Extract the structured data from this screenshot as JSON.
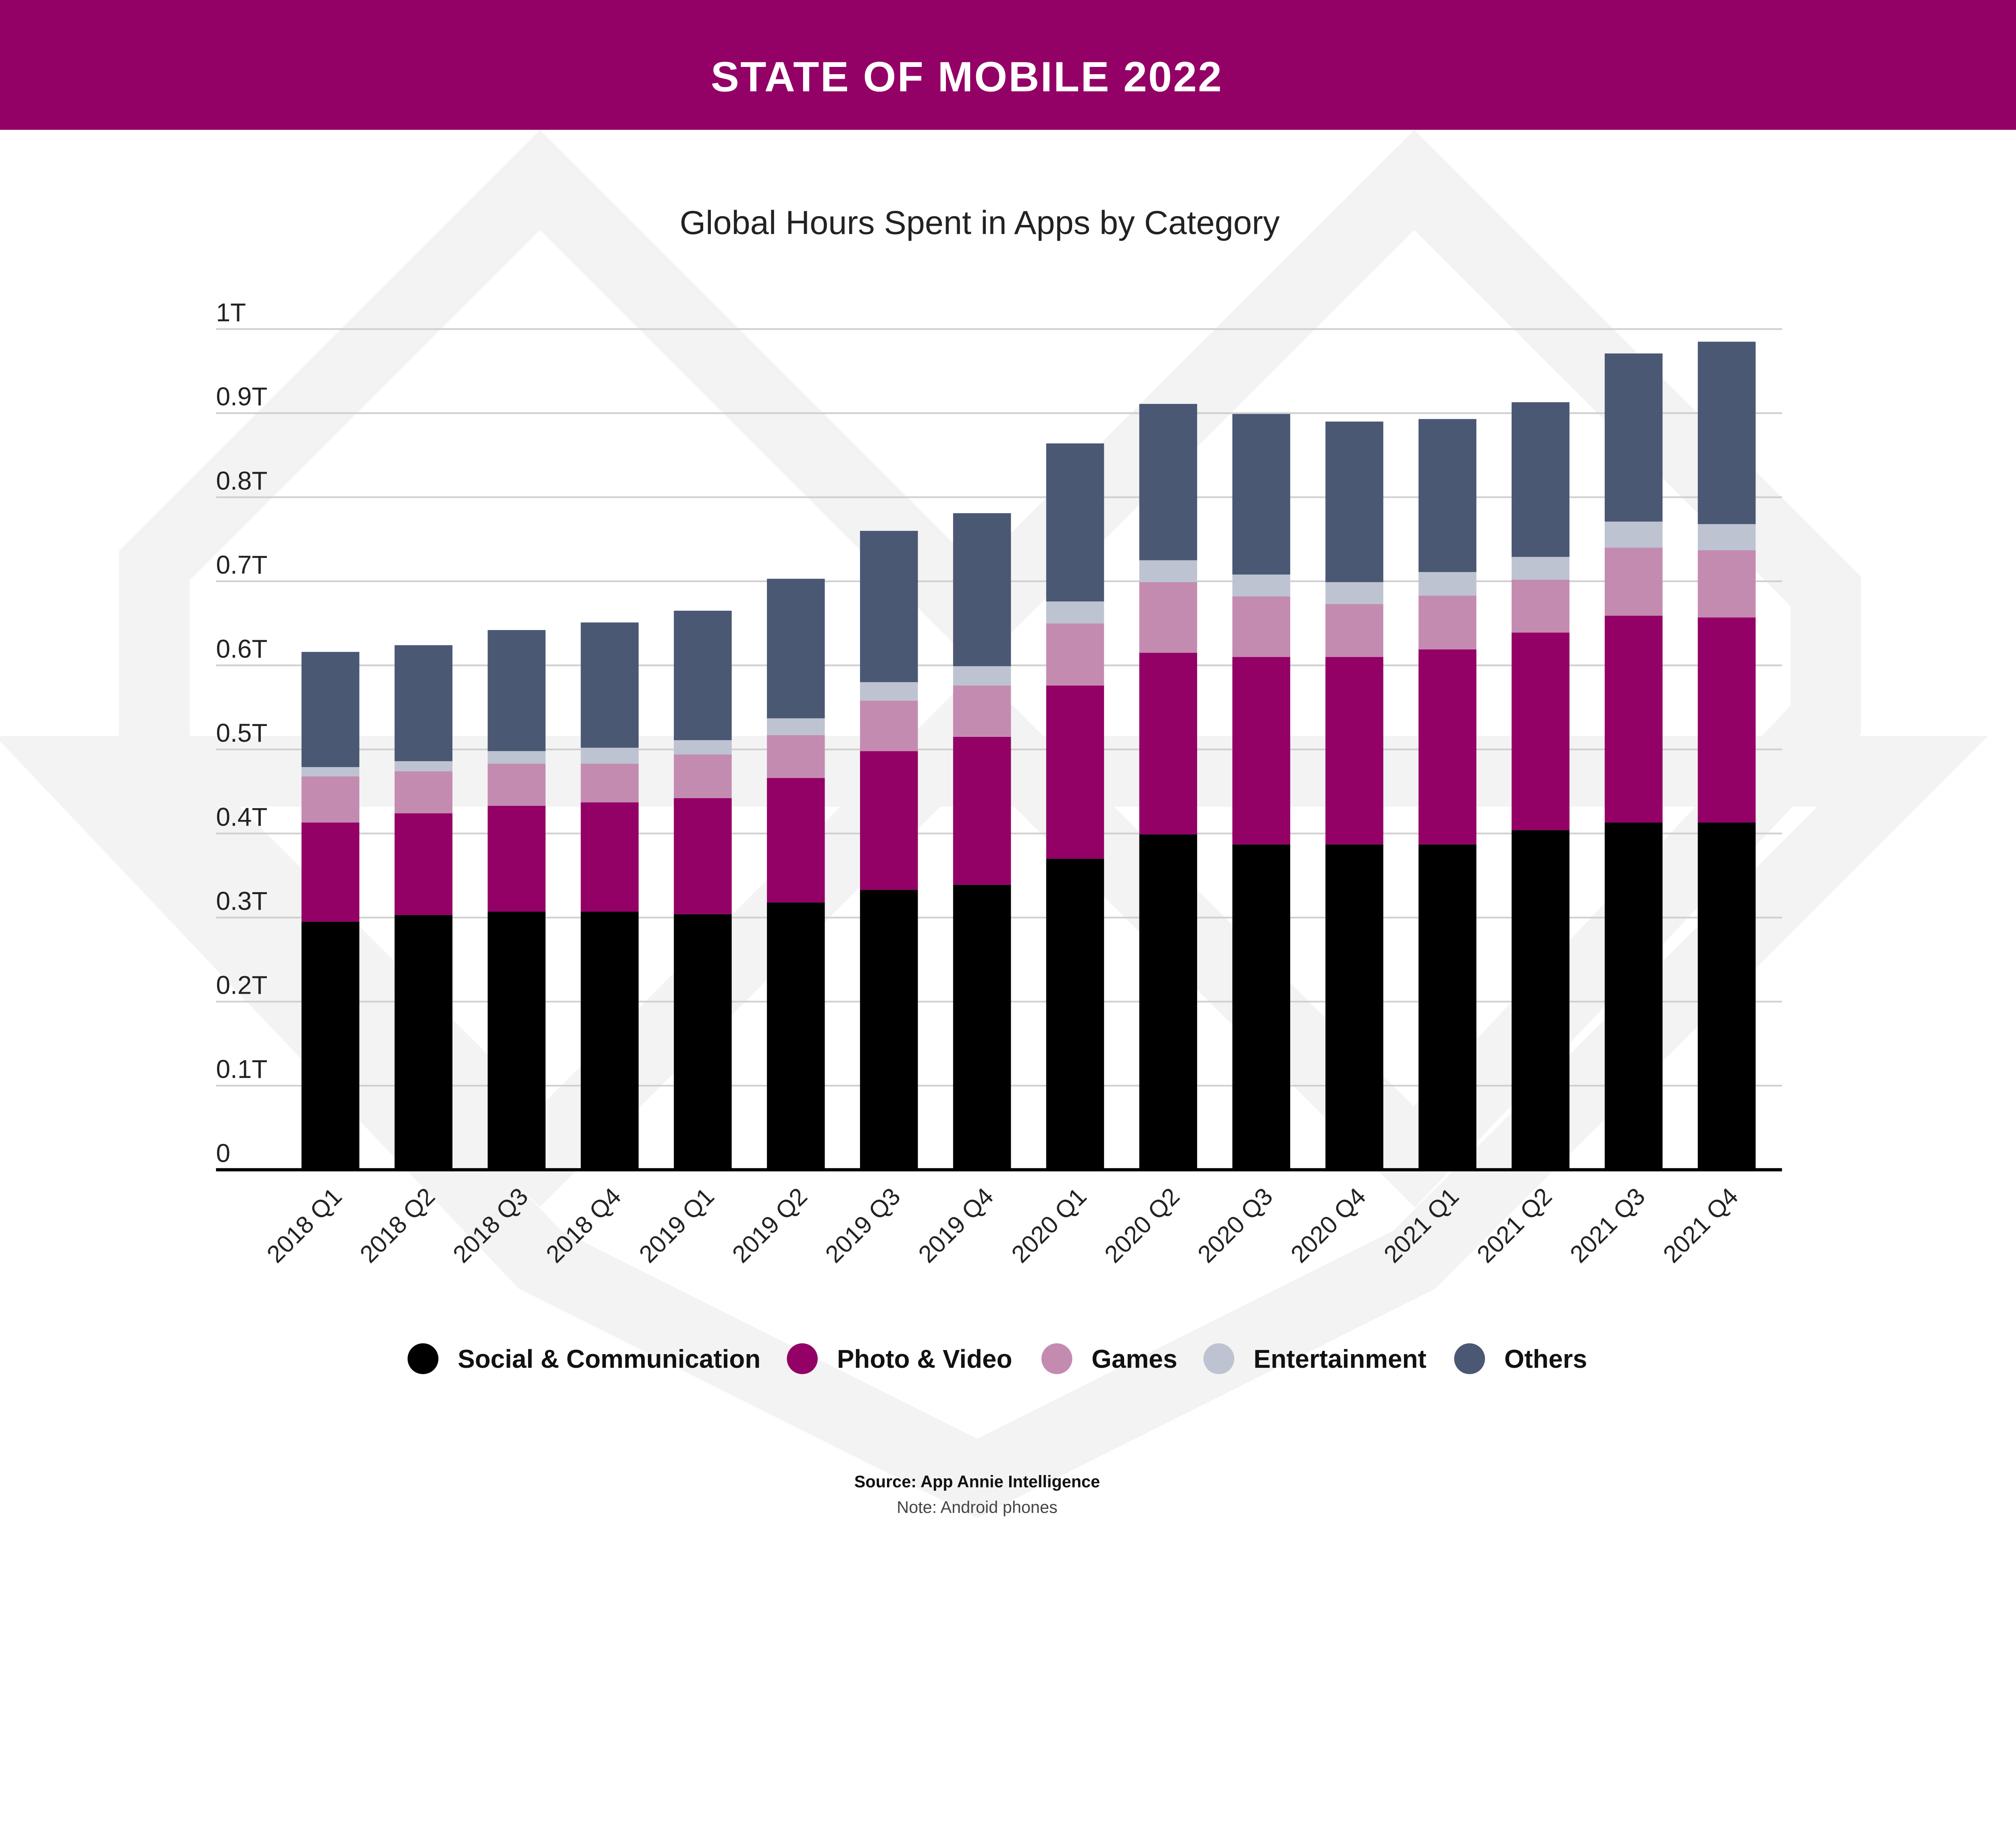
{
  "header": {
    "title": "STATE OF MOBILE 2022",
    "color": "#930066"
  },
  "footer": {
    "source": "Source: App Annie Intelligence",
    "note": "Note: Android phones"
  },
  "chart_data": {
    "type": "bar",
    "stacked": true,
    "title": "Global Hours Spent in Apps by Category",
    "xlabel": "",
    "ylabel": "",
    "ylim": [
      0,
      1.0
    ],
    "y_unit": "T",
    "y_ticks": [
      "0",
      "0.1T",
      "0.2T",
      "0.3T",
      "0.4T",
      "0.5T",
      "0.6T",
      "0.7T",
      "0.8T",
      "0.9T",
      "1T"
    ],
    "grid": true,
    "legend_position": "bottom",
    "categories": [
      "2018 Q1",
      "2018 Q2",
      "2018 Q3",
      "2018 Q4",
      "2019 Q1",
      "2019 Q2",
      "2019 Q3",
      "2019 Q4",
      "2020 Q1",
      "2020 Q2",
      "2020 Q3",
      "2020 Q4",
      "2021 Q1",
      "2021 Q2",
      "2021 Q3",
      "2021 Q4"
    ],
    "series": [
      {
        "name": "Social & Communication",
        "color": "#000000",
        "values": [
          0.295,
          0.303,
          0.307,
          0.307,
          0.304,
          0.318,
          0.333,
          0.339,
          0.37,
          0.399,
          0.387,
          0.387,
          0.387,
          0.404,
          0.413,
          0.413
        ]
      },
      {
        "name": "Photo & Video",
        "color": "#930066",
        "values": [
          0.118,
          0.121,
          0.126,
          0.13,
          0.138,
          0.148,
          0.165,
          0.176,
          0.206,
          0.216,
          0.223,
          0.223,
          0.232,
          0.235,
          0.246,
          0.244
        ]
      },
      {
        "name": "Games",
        "color": "#C48BB1",
        "values": [
          0.055,
          0.05,
          0.05,
          0.046,
          0.052,
          0.051,
          0.06,
          0.061,
          0.074,
          0.084,
          0.072,
          0.063,
          0.064,
          0.063,
          0.081,
          0.08
        ]
      },
      {
        "name": "Entertainment",
        "color": "#BEC3D1",
        "values": [
          0.011,
          0.012,
          0.015,
          0.019,
          0.017,
          0.02,
          0.022,
          0.023,
          0.026,
          0.026,
          0.026,
          0.026,
          0.028,
          0.027,
          0.031,
          0.031
        ]
      },
      {
        "name": "Others",
        "color": "#4A5874",
        "values": [
          0.137,
          0.138,
          0.144,
          0.149,
          0.154,
          0.166,
          0.18,
          0.182,
          0.188,
          0.186,
          0.191,
          0.191,
          0.182,
          0.184,
          0.2,
          0.217
        ]
      }
    ]
  }
}
